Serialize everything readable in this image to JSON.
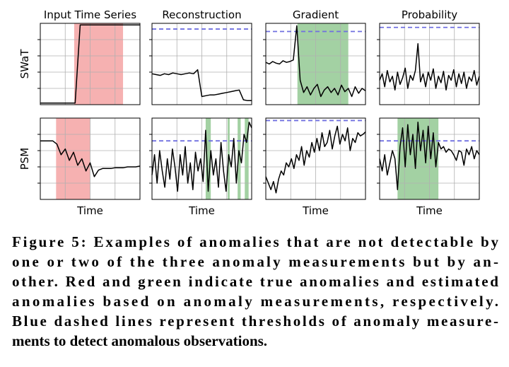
{
  "column_titles": [
    "Input Time Series",
    "Reconstruction",
    "Gradient",
    "Probability"
  ],
  "row_labels": [
    "SWaT",
    "PSM"
  ],
  "x_label": "Time",
  "caption": [
    "Figure 5: Examples of anomalies that are not detectable by",
    "one or two of the three anomaly measurements but by an-",
    "other. Red and green indicate true anomalies and estimated",
    "anomalies based on anomaly measurements, respectively.",
    "Blue dashed lines represent thresholds of anomaly measure-",
    "ments to detect anomalous observations."
  ],
  "chart_data": [
    {
      "type": "line",
      "color": "#000000",
      "ylim": [
        0,
        1
      ],
      "yticks": [
        0.2,
        0.4,
        0.6,
        0.8
      ],
      "xticks": [
        0.25,
        0.5,
        0.75
      ],
      "grid": true,
      "span_color": "#f4a3a3",
      "spans": [
        {
          "start": 6.8,
          "end": 16.6
        }
      ],
      "values": [
        0.02,
        0.02,
        0.02,
        0.02,
        0.02,
        0.02,
        0.02,
        0.02,
        0.98,
        0.98,
        0.98,
        0.98,
        0.98,
        0.98,
        0.98,
        0.98,
        0.98,
        0.98,
        0.98,
        0.98,
        0.98
      ]
    },
    {
      "type": "line",
      "color": "#000000",
      "ylim": [
        0,
        1
      ],
      "yticks": [
        0.2,
        0.4,
        0.6,
        0.8
      ],
      "xticks": [
        0.25,
        0.5,
        0.75
      ],
      "grid": true,
      "threshold": 0.93,
      "threshold_color": "#7070e0",
      "values": [
        0.38,
        0.37,
        0.36,
        0.38,
        0.37,
        0.39,
        0.38,
        0.37,
        0.38,
        0.39,
        0.38,
        0.43,
        0.1,
        0.11,
        0.12,
        0.12,
        0.13,
        0.14,
        0.15,
        0.16,
        0.17,
        0.18,
        0.06,
        0.05,
        0.05
      ]
    },
    {
      "type": "line",
      "color": "#000000",
      "ylim": [
        0,
        1
      ],
      "yticks": [
        0.2,
        0.4,
        0.6,
        0.8
      ],
      "xticks": [
        0.25,
        0.5,
        0.75
      ],
      "grid": true,
      "threshold": 0.9,
      "threshold_color": "#7070e0",
      "span_color": "#93c993",
      "spans": [
        {
          "start": 9.2,
          "end": 24
        }
      ],
      "values": [
        0.52,
        0.5,
        0.53,
        0.51,
        0.5,
        0.54,
        0.52,
        0.53,
        0.55,
        0.97,
        0.3,
        0.15,
        0.22,
        0.12,
        0.2,
        0.25,
        0.1,
        0.18,
        0.22,
        0.15,
        0.2,
        0.12,
        0.24,
        0.16,
        0.2,
        0.1,
        0.22,
        0.14,
        0.2,
        0.17
      ]
    },
    {
      "type": "line",
      "color": "#000000",
      "ylim": [
        0,
        1
      ],
      "yticks": [
        0.2,
        0.4,
        0.6,
        0.8
      ],
      "xticks": [
        0.25,
        0.5,
        0.75
      ],
      "grid": true,
      "threshold": 0.95,
      "threshold_color": "#7070e0",
      "values": [
        0.3,
        0.38,
        0.22,
        0.42,
        0.28,
        0.35,
        0.18,
        0.4,
        0.25,
        0.33,
        0.45,
        0.2,
        0.36,
        0.3,
        0.42,
        0.75,
        0.28,
        0.38,
        0.22,
        0.4,
        0.3,
        0.44,
        0.2,
        0.35,
        0.27,
        0.41,
        0.18,
        0.36,
        0.3,
        0.43,
        0.22,
        0.38,
        0.26,
        0.4,
        0.2,
        0.34,
        0.29,
        0.42,
        0.24,
        0.35
      ]
    },
    {
      "type": "line",
      "color": "#000000",
      "ylim": [
        0,
        1
      ],
      "yticks": [
        0.2,
        0.4,
        0.6,
        0.8
      ],
      "xticks": [
        0.25,
        0.5,
        0.75
      ],
      "grid": true,
      "span_color": "#f4a3a3",
      "spans": [
        {
          "start": 3.8,
          "end": 12
        }
      ],
      "values": [
        0.72,
        0.72,
        0.72,
        0.72,
        0.68,
        0.55,
        0.62,
        0.48,
        0.58,
        0.42,
        0.5,
        0.35,
        0.45,
        0.28,
        0.36,
        0.38,
        0.38,
        0.38,
        0.39,
        0.39,
        0.39,
        0.4,
        0.4,
        0.4,
        0.41
      ]
    },
    {
      "type": "line",
      "color": "#000000",
      "ylim": [
        0,
        1
      ],
      "yticks": [
        0.2,
        0.4,
        0.6,
        0.8
      ],
      "xticks": [
        0.25,
        0.5,
        0.75
      ],
      "grid": true,
      "threshold": 0.72,
      "threshold_color": "#7070e0",
      "span_color": "#93c993",
      "spans": [
        {
          "start": 21,
          "end": 23
        },
        {
          "start": 29.6,
          "end": 30.4
        },
        {
          "start": 33.5,
          "end": 34.7
        },
        {
          "start": 36.3,
          "end": 37.8
        }
      ],
      "values": [
        0.3,
        0.55,
        0.2,
        0.6,
        0.35,
        0.15,
        0.5,
        0.25,
        0.62,
        0.4,
        0.1,
        0.55,
        0.3,
        0.65,
        0.2,
        0.45,
        0.12,
        0.58,
        0.35,
        0.5,
        0.22,
        0.85,
        0.1,
        0.6,
        0.3,
        0.5,
        0.15,
        0.7,
        0.35,
        0.1,
        0.55,
        0.4,
        0.75,
        0.2,
        0.6,
        0.45,
        0.8,
        0.7,
        0.95,
        0.88
      ]
    },
    {
      "type": "line",
      "color": "#000000",
      "ylim": [
        0,
        1
      ],
      "yticks": [
        0.2,
        0.4,
        0.6,
        0.8
      ],
      "xticks": [
        0.25,
        0.5,
        0.75
      ],
      "grid": true,
      "threshold": 0.97,
      "threshold_color": "#7070e0",
      "values": [
        0.28,
        0.2,
        0.12,
        0.22,
        0.08,
        0.25,
        0.35,
        0.3,
        0.45,
        0.4,
        0.5,
        0.38,
        0.55,
        0.48,
        0.65,
        0.42,
        0.6,
        0.52,
        0.7,
        0.58,
        0.75,
        0.6,
        0.82,
        0.65,
        0.7,
        0.85,
        0.62,
        0.78,
        0.9,
        0.68,
        0.8,
        0.72,
        0.88,
        0.6,
        0.75,
        0.7,
        0.82,
        0.78,
        0.8,
        0.83
      ]
    },
    {
      "type": "line",
      "color": "#000000",
      "ylim": [
        0,
        1
      ],
      "yticks": [
        0.2,
        0.4,
        0.6,
        0.8
      ],
      "xticks": [
        0.25,
        0.5,
        0.75
      ],
      "grid": true,
      "threshold": 0.72,
      "threshold_color": "#7070e0",
      "span_color": "#93c993",
      "spans": [
        {
          "start": 7,
          "end": 23
        }
      ],
      "values": [
        0.5,
        0.35,
        0.55,
        0.3,
        0.45,
        0.6,
        0.5,
        0.12,
        0.65,
        0.88,
        0.4,
        0.92,
        0.55,
        0.8,
        0.38,
        0.95,
        0.6,
        0.85,
        0.45,
        0.9,
        0.5,
        0.82,
        0.4,
        0.7,
        0.62,
        0.65,
        0.58,
        0.62,
        0.6,
        0.55,
        0.48,
        0.6,
        0.58,
        0.42,
        0.62,
        0.55,
        0.65,
        0.5,
        0.6,
        0.55
      ]
    }
  ]
}
